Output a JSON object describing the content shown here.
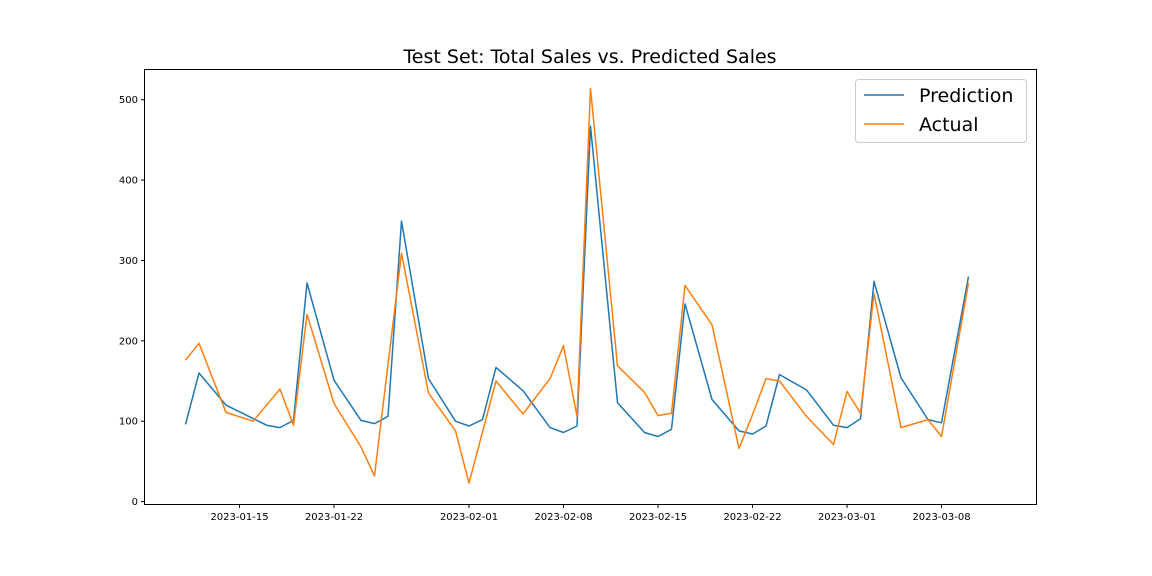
{
  "chart_data": {
    "type": "line",
    "title": "Test Set: Total Sales vs. Predicted Sales",
    "xlabel": "",
    "ylabel": "",
    "xlim": [
      "2023-01-08",
      "2023-03-15"
    ],
    "ylim": [
      -3,
      537
    ],
    "x_ticks": [
      "2023-01-15",
      "2023-01-22",
      "2023-02-01",
      "2023-02-08",
      "2023-02-15",
      "2023-02-22",
      "2023-03-01",
      "2023-03-08"
    ],
    "y_ticks": [
      0,
      100,
      200,
      300,
      400,
      500
    ],
    "legend_position": "top-right",
    "grid": false,
    "series": [
      {
        "name": "Prediction",
        "color": "#1f77b4",
        "points": [
          [
            "2023-01-11",
            96
          ],
          [
            "2023-01-12",
            160
          ],
          [
            "2023-01-14",
            120
          ],
          [
            "2023-01-17",
            95
          ],
          [
            "2023-01-18",
            92
          ],
          [
            "2023-01-19",
            101
          ],
          [
            "2023-01-20",
            272
          ],
          [
            "2023-01-22",
            151
          ],
          [
            "2023-01-24",
            101
          ],
          [
            "2023-01-25",
            97
          ],
          [
            "2023-01-26",
            106
          ],
          [
            "2023-01-27",
            349
          ],
          [
            "2023-01-29",
            153
          ],
          [
            "2023-01-31",
            100
          ],
          [
            "2023-02-01",
            94
          ],
          [
            "2023-02-02",
            102
          ],
          [
            "2023-02-03",
            167
          ],
          [
            "2023-02-05",
            138
          ],
          [
            "2023-02-07",
            92
          ],
          [
            "2023-02-08",
            86
          ],
          [
            "2023-02-09",
            94
          ],
          [
            "2023-02-10",
            467
          ],
          [
            "2023-02-12",
            123
          ],
          [
            "2023-02-14",
            86
          ],
          [
            "2023-02-15",
            81
          ],
          [
            "2023-02-16",
            90
          ],
          [
            "2023-02-17",
            246
          ],
          [
            "2023-02-19",
            127
          ],
          [
            "2023-02-21",
            88
          ],
          [
            "2023-02-22",
            84
          ],
          [
            "2023-02-23",
            94
          ],
          [
            "2023-02-24",
            158
          ],
          [
            "2023-02-26",
            139
          ],
          [
            "2023-02-28",
            95
          ],
          [
            "2023-03-01",
            92
          ],
          [
            "2023-03-02",
            103
          ],
          [
            "2023-03-03",
            274
          ],
          [
            "2023-03-05",
            154
          ],
          [
            "2023-03-07",
            102
          ],
          [
            "2023-03-08",
            98
          ],
          [
            "2023-03-10",
            280
          ]
        ]
      },
      {
        "name": "Actual",
        "color": "#ff7f0e",
        "points": [
          [
            "2023-01-11",
            176
          ],
          [
            "2023-01-12",
            197
          ],
          [
            "2023-01-14",
            111
          ],
          [
            "2023-01-16",
            100
          ],
          [
            "2023-01-18",
            140
          ],
          [
            "2023-01-19",
            95
          ],
          [
            "2023-01-20",
            233
          ],
          [
            "2023-01-22",
            122
          ],
          [
            "2023-01-24",
            68
          ],
          [
            "2023-01-25",
            32
          ],
          [
            "2023-01-27",
            309
          ],
          [
            "2023-01-29",
            135
          ],
          [
            "2023-01-31",
            88
          ],
          [
            "2023-02-01",
            23
          ],
          [
            "2023-02-03",
            150
          ],
          [
            "2023-02-05",
            109
          ],
          [
            "2023-02-07",
            153
          ],
          [
            "2023-02-08",
            194
          ],
          [
            "2023-02-09",
            106
          ],
          [
            "2023-02-10",
            514
          ],
          [
            "2023-02-12",
            169
          ],
          [
            "2023-02-14",
            136
          ],
          [
            "2023-02-15",
            107
          ],
          [
            "2023-02-16",
            110
          ],
          [
            "2023-02-17",
            269
          ],
          [
            "2023-02-19",
            220
          ],
          [
            "2023-02-21",
            66
          ],
          [
            "2023-02-22",
            108
          ],
          [
            "2023-02-23",
            153
          ],
          [
            "2023-02-24",
            150
          ],
          [
            "2023-02-26",
            106
          ],
          [
            "2023-02-28",
            71
          ],
          [
            "2023-03-01",
            137
          ],
          [
            "2023-03-02",
            110
          ],
          [
            "2023-03-03",
            259
          ],
          [
            "2023-03-05",
            92
          ],
          [
            "2023-03-07",
            102
          ],
          [
            "2023-03-08",
            81
          ],
          [
            "2023-03-10",
            272
          ]
        ]
      }
    ]
  }
}
